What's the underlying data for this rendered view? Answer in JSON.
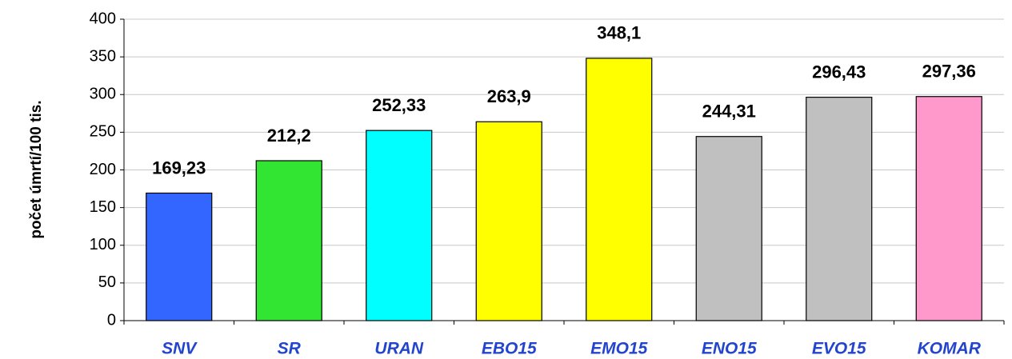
{
  "chart_data": {
    "type": "bar",
    "y_axis_label": "počet úmrtí/100 tis.",
    "categories": [
      "SNV",
      "SR",
      "URAN",
      "EBO15",
      "EMO15",
      "ENO15",
      "EVO15",
      "KOMAR"
    ],
    "values": [
      169.23,
      212.2,
      252.33,
      263.9,
      348.1,
      244.31,
      296.43,
      297.36
    ],
    "value_labels": [
      "169,23",
      "212,2",
      "252,33",
      "263,9",
      "348,1",
      "244,31",
      "296,43",
      "297,36"
    ],
    "colors": [
      "#3366ff",
      "#33e533",
      "#00ffff",
      "#ffff00",
      "#ffff00",
      "#c0c0c0",
      "#c0c0c0",
      "#ff99cc"
    ],
    "ylim": [
      0,
      400
    ],
    "yticks": [
      0,
      50,
      100,
      150,
      200,
      250,
      300,
      350,
      400
    ],
    "grid": true
  }
}
